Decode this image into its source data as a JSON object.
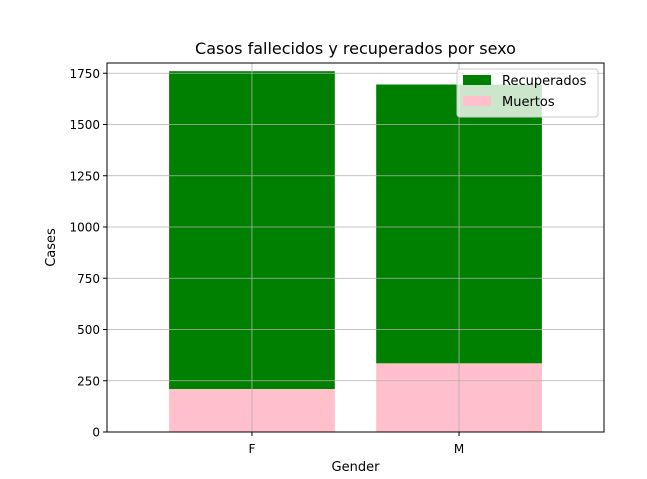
{
  "chart_data": {
    "type": "bar",
    "stacked": true,
    "title": "Casos fallecidos y recuperados por sexo",
    "xlabel": "Gender",
    "ylabel": "Cases",
    "categories": [
      "F",
      "M"
    ],
    "series": [
      {
        "name": "Muertos",
        "values": [
          210,
          335
        ],
        "color": "#ffc0cb"
      },
      {
        "name": "Recuperados",
        "values": [
          1550,
          1360
        ],
        "color": "#008000"
      }
    ],
    "ylim": [
      0,
      1800
    ],
    "yticks": [
      0,
      250,
      500,
      750,
      1000,
      1250,
      1500,
      1750
    ],
    "grid": true,
    "legend_position": "top-right",
    "legend_order": [
      "Recuperados",
      "Muertos"
    ]
  }
}
